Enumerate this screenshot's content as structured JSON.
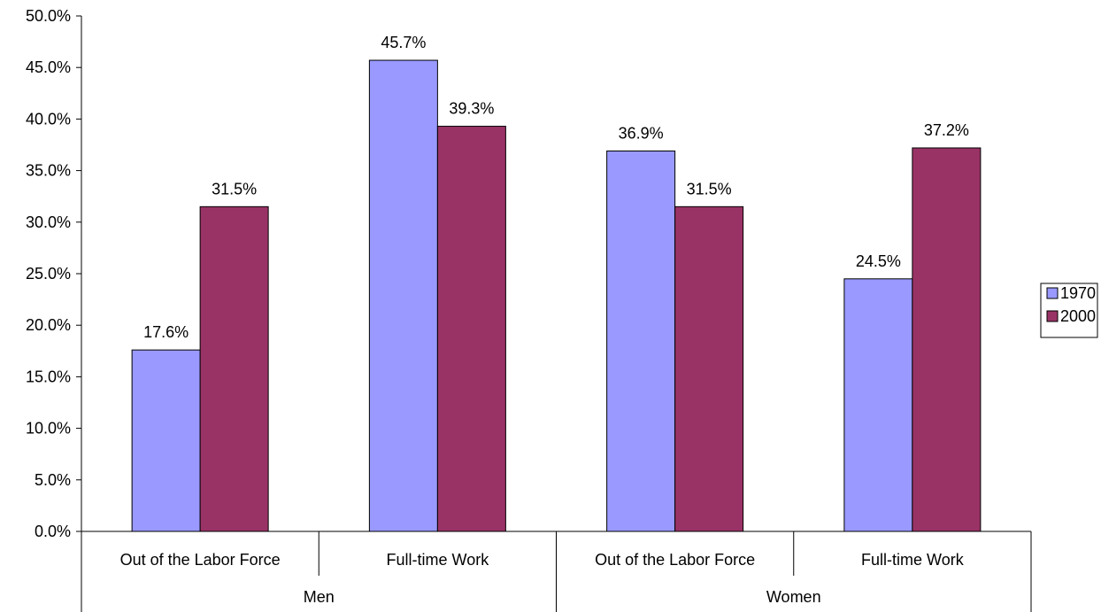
{
  "chart_data": {
    "type": "bar",
    "categories": [
      "Out of the Labor Force",
      "Full-time Work",
      "Out of the Labor Force",
      "Full-time Work"
    ],
    "groups": [
      {
        "label": "Men",
        "categories": [
          0,
          1
        ]
      },
      {
        "label": "Women",
        "categories": [
          2,
          3
        ]
      }
    ],
    "series": [
      {
        "name": "1970",
        "color": "#9999ff",
        "values": [
          17.6,
          45.7,
          36.9,
          24.5
        ],
        "labels": [
          "17.6%",
          "45.7%",
          "36.9%",
          "24.5%"
        ]
      },
      {
        "name": "2000",
        "color": "#993366",
        "values": [
          31.5,
          39.3,
          31.5,
          37.2
        ],
        "labels": [
          "31.5%",
          "39.3%",
          "31.5%",
          "37.2%"
        ]
      }
    ],
    "ylim": [
      0,
      50
    ],
    "yticks": [
      0,
      5,
      10,
      15,
      20,
      25,
      30,
      35,
      40,
      45,
      50
    ],
    "ytick_labels": [
      "0.0%",
      "5.0%",
      "10.0%",
      "15.0%",
      "20.0%",
      "25.0%",
      "30.0%",
      "35.0%",
      "40.0%",
      "45.0%",
      "50.0%"
    ],
    "grid": false,
    "legend": "right"
  }
}
